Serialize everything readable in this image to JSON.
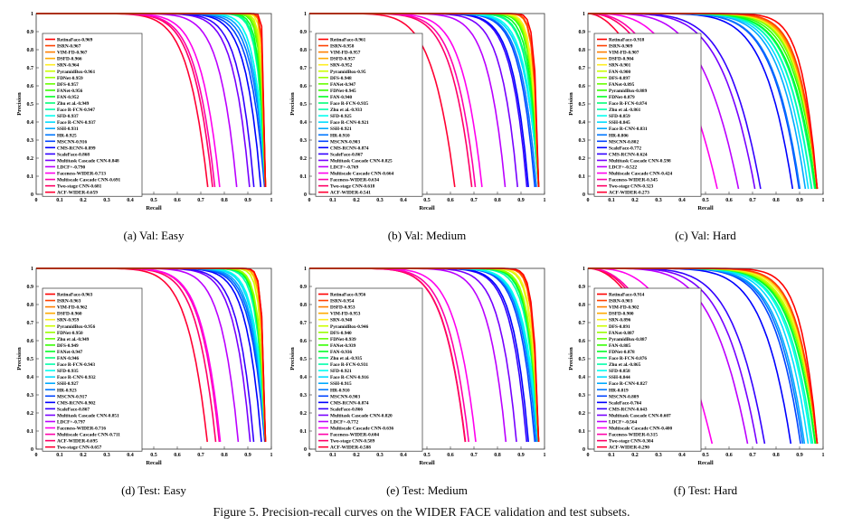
{
  "caption": "Figure 5. Precision-recall curves on the WIDER FACE validation and test subsets.",
  "chart_data": [
    {
      "type": "line",
      "subcaption": "(a)  Val: Easy",
      "xlabel": "Recall",
      "ylabel": "Precision",
      "xlim": [
        0,
        1
      ],
      "ylim": [
        0,
        1
      ],
      "legend": "top-left",
      "series": [
        [
          "RetinaFace-0.969",
          0.969
        ],
        [
          "ISRN-0.967",
          0.967
        ],
        [
          "VIM-FD-0.967",
          0.967
        ],
        [
          "DSFD-0.966",
          0.966
        ],
        [
          "SRN-0.964",
          0.964
        ],
        [
          "PyramidBox-0.961",
          0.961
        ],
        [
          "FDNet-0.959",
          0.959
        ],
        [
          "DFS-0.957",
          0.957
        ],
        [
          "FANet-0.956",
          0.956
        ],
        [
          "FAN-0.952",
          0.952
        ],
        [
          "Zhu et al.-0.949",
          0.949
        ],
        [
          "Face R-FCN-0.947",
          0.947
        ],
        [
          "SFD-0.937",
          0.937
        ],
        [
          "Face R-CNN-0.937",
          0.937
        ],
        [
          "SSH-0.931",
          0.931
        ],
        [
          "HR-0.925",
          0.925
        ],
        [
          "MSCNN-0.916",
          0.916
        ],
        [
          "CMS-RCNN-0.899",
          0.899
        ],
        [
          "ScaleFace-0.868",
          0.868
        ],
        [
          "Multitask Cascade CNN-0.848",
          0.848
        ],
        [
          "LDCF+-0.790",
          0.79
        ],
        [
          "Faceness-WIDER-0.713",
          0.713
        ],
        [
          "Multiscale Cascade CNN-0.691",
          0.691
        ],
        [
          "Two-stage CNN-0.681",
          0.681
        ],
        [
          "ACF-WIDER-0.659",
          0.659
        ]
      ]
    },
    {
      "type": "line",
      "subcaption": "(b)  Val: Medium",
      "xlabel": "Recall",
      "ylabel": "Precision",
      "xlim": [
        0,
        1
      ],
      "ylim": [
        0,
        1
      ],
      "legend": "top-left",
      "series": [
        [
          "RetinaFace-0.961",
          0.961
        ],
        [
          "ISRN-0.958",
          0.958
        ],
        [
          "VIM-FD-0.957",
          0.957
        ],
        [
          "DSFD-0.957",
          0.957
        ],
        [
          "SRN-0.952",
          0.952
        ],
        [
          "PyramidBox-0.95",
          0.95
        ],
        [
          "DFS-0.948",
          0.948
        ],
        [
          "FANet-0.947",
          0.947
        ],
        [
          "FDNet-0.945",
          0.945
        ],
        [
          "FAN-0.940",
          0.94
        ],
        [
          "Face R-FCN-0.935",
          0.935
        ],
        [
          "Zhu et al.-0.933",
          0.933
        ],
        [
          "SFD-0.925",
          0.925
        ],
        [
          "Face R-CNN-0.921",
          0.921
        ],
        [
          "SSH-0.921",
          0.921
        ],
        [
          "HR-0.910",
          0.91
        ],
        [
          "MSCNN-0.903",
          0.903
        ],
        [
          "CMS-RCNN-0.874",
          0.874
        ],
        [
          "ScaleFace-0.867",
          0.867
        ],
        [
          "Multitask Cascade CNN-0.825",
          0.825
        ],
        [
          "LDCF+-0.769",
          0.769
        ],
        [
          "Multiscale Cascade CNN-0.664",
          0.664
        ],
        [
          "Faceness-WIDER-0.634",
          0.634
        ],
        [
          "Two-stage CNN-0.618",
          0.618
        ],
        [
          "ACF-WIDER-0.541",
          0.541
        ]
      ]
    },
    {
      "type": "line",
      "subcaption": "(c)  Val: Hard",
      "xlabel": "Recall",
      "ylabel": "Precision",
      "xlim": [
        0,
        1
      ],
      "ylim": [
        0,
        1
      ],
      "legend": "top-left",
      "series": [
        [
          "RetinaFace-0.918",
          0.918
        ],
        [
          "ISRN-0.909",
          0.909
        ],
        [
          "VIM-FD-0.907",
          0.907
        ],
        [
          "DSFD-0.904",
          0.904
        ],
        [
          "SRN-0.901",
          0.901
        ],
        [
          "FAN-0.900",
          0.9
        ],
        [
          "DFS-0.897",
          0.897
        ],
        [
          "FANet-0.895",
          0.895
        ],
        [
          "PyramidBox-0.889",
          0.889
        ],
        [
          "FDNet-0.879",
          0.879
        ],
        [
          "Face R-FCN-0.874",
          0.874
        ],
        [
          "Zhu et al.-0.861",
          0.861
        ],
        [
          "SFD-0.859",
          0.859
        ],
        [
          "SSH-0.845",
          0.845
        ],
        [
          "Face R-CNN-0.831",
          0.831
        ],
        [
          "HR-0.806",
          0.806
        ],
        [
          "MSCNN-0.802",
          0.802
        ],
        [
          "ScaleFace-0.772",
          0.772
        ],
        [
          "CMS-RCNN-0.624",
          0.624
        ],
        [
          "Multitask Cascade CNN-0.598",
          0.598
        ],
        [
          "LDCF+-0.522",
          0.522
        ],
        [
          "Multiscale Cascade CNN-0.424",
          0.424
        ],
        [
          "Faceness-WIDER-0.345",
          0.345
        ],
        [
          "Two-stage CNN-0.323",
          0.323
        ],
        [
          "ACF-WIDER-0.273",
          0.273
        ]
      ]
    },
    {
      "type": "line",
      "subcaption": "(d)  Test: Easy",
      "xlabel": "Recall",
      "ylabel": "Precision",
      "xlim": [
        0,
        1
      ],
      "ylim": [
        0,
        1
      ],
      "legend": "top-left",
      "series": [
        [
          "RetinaFace-0.963",
          0.963
        ],
        [
          "ISRN-0.963",
          0.963
        ],
        [
          "VIM-FD-0.962",
          0.962
        ],
        [
          "DSFD-0.960",
          0.96
        ],
        [
          "SRN-0.959",
          0.959
        ],
        [
          "PyramidBox-0.956",
          0.956
        ],
        [
          "FDNet-0.950",
          0.95
        ],
        [
          "Zhu et al.-0.949",
          0.949
        ],
        [
          "DFS-0.949",
          0.949
        ],
        [
          "FANet-0.947",
          0.947
        ],
        [
          "FAN-0.946",
          0.946
        ],
        [
          "Face R-FCN-0.943",
          0.943
        ],
        [
          "SFD-0.935",
          0.935
        ],
        [
          "Face R-CNN-0.932",
          0.932
        ],
        [
          "SSH-0.927",
          0.927
        ],
        [
          "HR-0.923",
          0.923
        ],
        [
          "MSCNN-0.917",
          0.917
        ],
        [
          "CMS-RCNN-0.902",
          0.902
        ],
        [
          "ScaleFace-0.867",
          0.867
        ],
        [
          "Multitask Cascade CNN-0.851",
          0.851
        ],
        [
          "LDCF+-0.797",
          0.797
        ],
        [
          "Faceness-WIDER-0.716",
          0.716
        ],
        [
          "Multiscale Cascade CNN-0.711",
          0.711
        ],
        [
          "ACF-WIDER-0.695",
          0.695
        ],
        [
          "Two-stage CNN-0.657",
          0.657
        ]
      ]
    },
    {
      "type": "line",
      "subcaption": "(e)  Test: Medium",
      "xlabel": "Recall",
      "ylabel": "Precision",
      "xlim": [
        0,
        1
      ],
      "ylim": [
        0,
        1
      ],
      "legend": "top-left",
      "series": [
        [
          "RetinaFace-0.956",
          0.956
        ],
        [
          "ISRN-0.954",
          0.954
        ],
        [
          "DSFD-0.953",
          0.953
        ],
        [
          "VIM-FD-0.953",
          0.953
        ],
        [
          "SRN-0.948",
          0.948
        ],
        [
          "PyramidBox-0.946",
          0.946
        ],
        [
          "DFS-0.940",
          0.94
        ],
        [
          "FDNet-0.939",
          0.939
        ],
        [
          "FANet-0.939",
          0.939
        ],
        [
          "FAN-0.936",
          0.936
        ],
        [
          "Zhu et al.-0.935",
          0.935
        ],
        [
          "Face R-FCN-0.931",
          0.931
        ],
        [
          "SFD-0.921",
          0.921
        ],
        [
          "Face R-CNN-0.916",
          0.916
        ],
        [
          "SSH-0.915",
          0.915
        ],
        [
          "HR-0.910",
          0.91
        ],
        [
          "MSCNN-0.903",
          0.903
        ],
        [
          "CMS-RCNN-0.874",
          0.874
        ],
        [
          "ScaleFace-0.866",
          0.866
        ],
        [
          "Multitask Cascade CNN-0.820",
          0.82
        ],
        [
          "LDCF+-0.772",
          0.772
        ],
        [
          "Multiscale Cascade CNN-0.636",
          0.636
        ],
        [
          "Faceness-WIDER-0.604",
          0.604
        ],
        [
          "Two-stage CNN-0.589",
          0.589
        ],
        [
          "ACF-WIDER-0.588",
          0.588
        ]
      ]
    },
    {
      "type": "line",
      "subcaption": "(f)  Test: Hard",
      "xlabel": "Recall",
      "ylabel": "Precision",
      "xlim": [
        0,
        1
      ],
      "ylim": [
        0,
        1
      ],
      "legend": "top-left",
      "series": [
        [
          "RetinaFace-0.914",
          0.914
        ],
        [
          "ISRN-0.903",
          0.903
        ],
        [
          "VIM-FD-0.902",
          0.902
        ],
        [
          "DSFD-0.900",
          0.9
        ],
        [
          "SRN-0.896",
          0.896
        ],
        [
          "DFS-0.891",
          0.891
        ],
        [
          "FANet-0.887",
          0.887
        ],
        [
          "PyramidBox-0.887",
          0.887
        ],
        [
          "FAN-0.885",
          0.885
        ],
        [
          "FDNet-0.878",
          0.878
        ],
        [
          "Face R-FCN-0.876",
          0.876
        ],
        [
          "Zhu et al.-0.865",
          0.865
        ],
        [
          "SFD-0.858",
          0.858
        ],
        [
          "SSH-0.844",
          0.844
        ],
        [
          "Face R-CNN-0.827",
          0.827
        ],
        [
          "HR-0.819",
          0.819
        ],
        [
          "MSCNN-0.809",
          0.809
        ],
        [
          "ScaleFace-0.764",
          0.764
        ],
        [
          "CMS-RCNN-0.643",
          0.643
        ],
        [
          "Multitask Cascade CNN-0.607",
          0.607
        ],
        [
          "LDCF+-0.564",
          0.564
        ],
        [
          "Multiscale Cascade CNN-0.400",
          0.4
        ],
        [
          "Faceness-WIDER-0.315",
          0.315
        ],
        [
          "Two-stage CNN-0.304",
          0.304
        ],
        [
          "ACF-WIDER-0.290",
          0.29
        ]
      ]
    }
  ],
  "series_colors": [
    "#ff0000",
    "#ff4000",
    "#ff7f00",
    "#ffaa00",
    "#ffee22",
    "#ccff00",
    "#99ff00",
    "#66ff00",
    "#33ff00",
    "#00ff22",
    "#00ff77",
    "#00ffaa",
    "#00ffee",
    "#00ddff",
    "#00aaff",
    "#0077ff",
    "#0044ff",
    "#0000ff",
    "#3300ff",
    "#7700ff",
    "#bb00ff",
    "#ff00ee",
    "#ff00aa",
    "#ff0066",
    "#ff0033"
  ]
}
